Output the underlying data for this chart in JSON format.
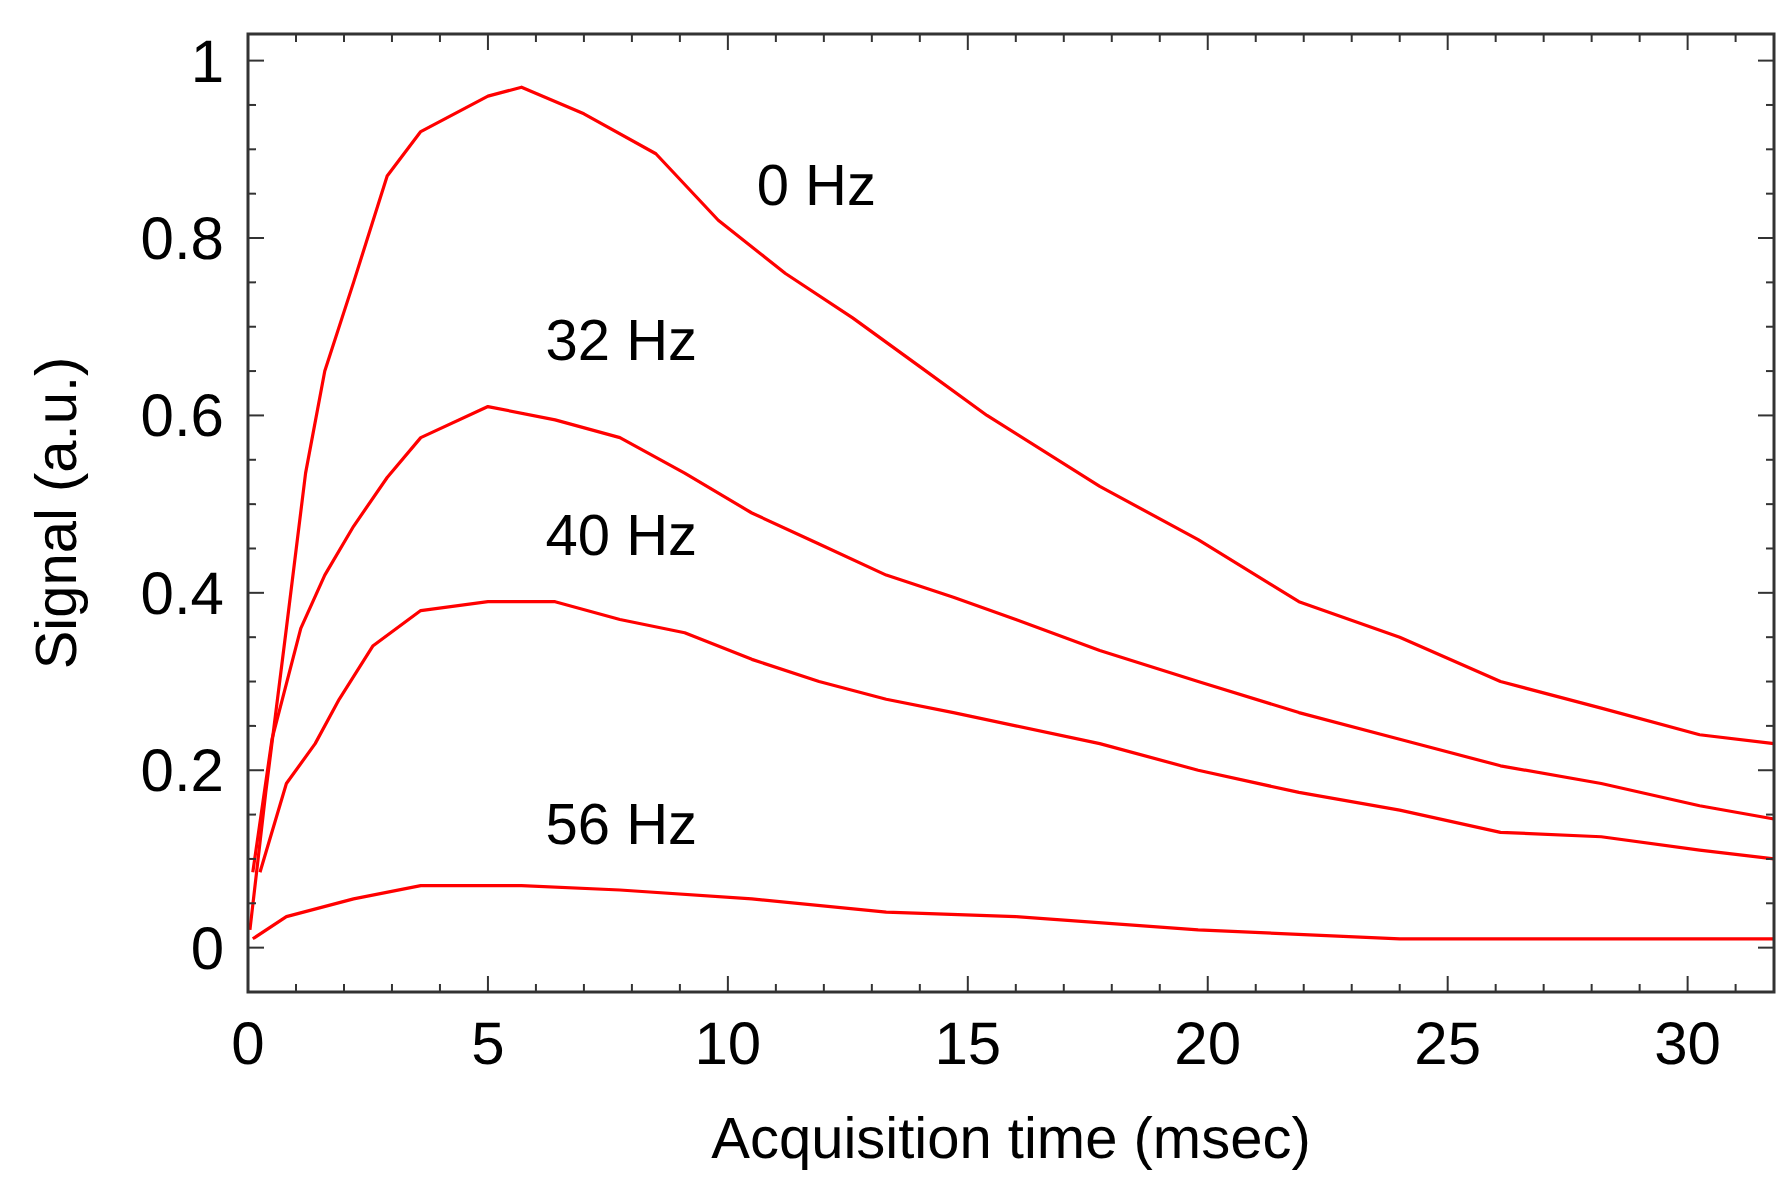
{
  "chart_data": {
    "type": "line",
    "xlabel": "Acquisition time (msec)",
    "ylabel": "Signal (a.u.)",
    "xlim": [
      0,
      31.8
    ],
    "ylim": [
      -0.05,
      1.03
    ],
    "xticks": [
      0,
      {
        "value": 1,
        "label": null
      },
      {
        "value": 2,
        "label": null
      },
      {
        "value": 3,
        "label": null
      },
      {
        "value": 4,
        "label": null
      },
      5,
      {
        "value": 6,
        "label": null
      },
      {
        "value": 7,
        "label": null
      },
      {
        "value": 8,
        "label": null
      },
      {
        "value": 9,
        "label": null
      },
      10,
      {
        "value": 11,
        "label": null
      },
      {
        "value": 12,
        "label": null
      },
      {
        "value": 13,
        "label": null
      },
      {
        "value": 14,
        "label": null
      },
      15,
      {
        "value": 16,
        "label": null
      },
      {
        "value": 17,
        "label": null
      },
      {
        "value": 18,
        "label": null
      },
      {
        "value": 19,
        "label": null
      },
      20,
      {
        "value": 21,
        "label": null
      },
      {
        "value": 22,
        "label": null
      },
      {
        "value": 23,
        "label": null
      },
      {
        "value": 24,
        "label": null
      },
      25,
      {
        "value": 26,
        "label": null
      },
      {
        "value": 27,
        "label": null
      },
      {
        "value": 28,
        "label": null
      },
      {
        "value": 29,
        "label": null
      },
      30,
      {
        "value": 31,
        "label": null
      }
    ],
    "yticks": [
      0,
      {
        "value": 0.05,
        "label": null
      },
      {
        "value": 0.1,
        "label": null
      },
      {
        "value": 0.15,
        "label": null
      },
      0.2,
      {
        "value": 0.25,
        "label": null
      },
      {
        "value": 0.3,
        "label": null
      },
      {
        "value": 0.35,
        "label": null
      },
      0.4,
      {
        "value": 0.45,
        "label": null
      },
      {
        "value": 0.5,
        "label": null
      },
      {
        "value": 0.55,
        "label": null
      },
      0.6,
      {
        "value": 0.65,
        "label": null
      },
      {
        "value": 0.7,
        "label": null
      },
      {
        "value": 0.75,
        "label": null
      },
      0.8,
      {
        "value": 0.85,
        "label": null
      },
      {
        "value": 0.9,
        "label": null
      },
      {
        "value": 0.95,
        "label": null
      },
      1
    ],
    "grid": false,
    "marker": "none",
    "line_style": "solid",
    "series": [
      {
        "name": "0 Hz",
        "color": "#ff0000",
        "x": [
          0.04,
          0.37,
          0.8,
          1.2,
          1.6,
          2.2,
          2.9,
          3.6,
          5.0,
          5.7,
          7.0,
          8.5,
          9.8,
          11.2,
          12.6,
          14,
          15.4,
          17.75,
          19.8,
          21.9,
          24,
          26.1,
          28.2,
          30.25,
          31.8
        ],
        "values": [
          0.02,
          0.175,
          0.36,
          0.535,
          0.65,
          0.75,
          0.87,
          0.92,
          0.96,
          0.97,
          0.94,
          0.895,
          0.82,
          0.76,
          0.71,
          0.655,
          0.6,
          0.52,
          0.46,
          0.39,
          0.35,
          0.3,
          0.27,
          0.24,
          0.23
        ]
      },
      {
        "name": "32 Hz",
        "color": "#ff0000",
        "x": [
          0.1,
          0.5,
          1.1,
          1.6,
          2.2,
          2.9,
          3.6,
          5.0,
          6.4,
          7.75,
          9.1,
          10.5,
          11.9,
          13.3,
          14.7,
          16,
          17.75,
          19.8,
          21.9,
          24,
          26.1,
          28.2,
          30.25,
          31.8
        ],
        "values": [
          0.085,
          0.235,
          0.36,
          0.42,
          0.475,
          0.53,
          0.575,
          0.61,
          0.595,
          0.575,
          0.535,
          0.49,
          0.455,
          0.42,
          0.395,
          0.37,
          0.335,
          0.3,
          0.265,
          0.235,
          0.205,
          0.185,
          0.16,
          0.145
        ]
      },
      {
        "name": "40 Hz",
        "color": "#ff0000",
        "x": [
          0.25,
          0.8,
          1.4,
          1.9,
          2.6,
          3.6,
          5.0,
          6.4,
          7.75,
          9.1,
          10.5,
          11.9,
          13.3,
          14.7,
          16,
          17.75,
          19.8,
          21.9,
          24,
          26.1,
          28.2,
          30.25,
          31.8
        ],
        "values": [
          0.085,
          0.185,
          0.23,
          0.28,
          0.34,
          0.38,
          0.39,
          0.39,
          0.37,
          0.355,
          0.325,
          0.3,
          0.28,
          0.265,
          0.25,
          0.23,
          0.2,
          0.175,
          0.155,
          0.13,
          0.125,
          0.11,
          0.1
        ]
      },
      {
        "name": "56 Hz",
        "color": "#ff0000",
        "x": [
          0.1,
          0.8,
          2.2,
          3.6,
          5.7,
          7.75,
          10.5,
          13.3,
          16,
          19.8,
          24,
          28.2,
          31.8
        ],
        "values": [
          0.01,
          0.035,
          0.055,
          0.07,
          0.07,
          0.065,
          0.055,
          0.04,
          0.035,
          0.02,
          0.01,
          0.01,
          0.01
        ]
      }
    ]
  }
}
